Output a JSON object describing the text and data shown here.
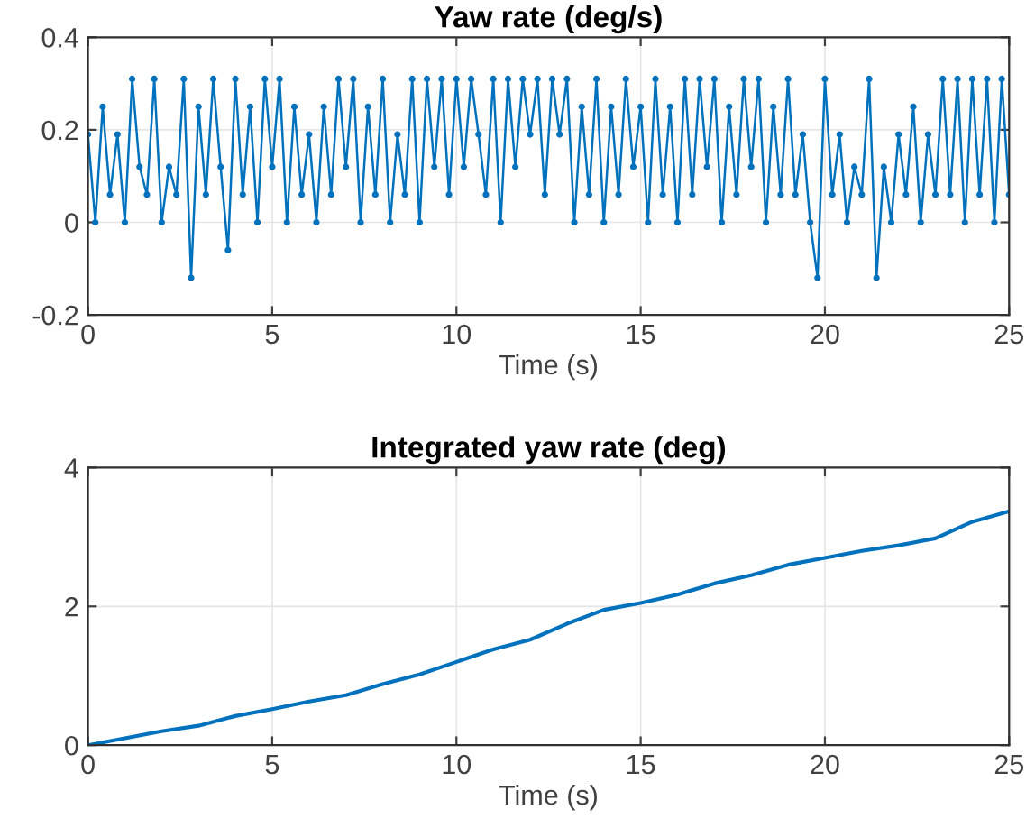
{
  "chart_data": [
    {
      "type": "line",
      "title": "Yaw rate (deg/s)",
      "xlabel": "Time (s)",
      "xlim": [
        0,
        25
      ],
      "xticks": [
        0,
        5,
        10,
        15,
        20,
        25
      ],
      "ylim": [
        -0.2,
        0.4
      ],
      "yticks": [
        -0.2,
        0,
        0.2,
        0.4
      ],
      "grid": true,
      "marker": "circle",
      "line_style": "solid",
      "series": [
        {
          "color": "#0072bd",
          "x": [
            0,
            0.2,
            0.4,
            0.6,
            0.8,
            1.0,
            1.2,
            1.4,
            1.6,
            1.8,
            2.0,
            2.2,
            2.4,
            2.6,
            2.8,
            3.0,
            3.2,
            3.4,
            3.6,
            3.8,
            4.0,
            4.2,
            4.4,
            4.6,
            4.8,
            5.0,
            5.2,
            5.4,
            5.6,
            5.8,
            6.0,
            6.2,
            6.4,
            6.6,
            6.8,
            7.0,
            7.2,
            7.4,
            7.6,
            7.8,
            8.0,
            8.2,
            8.4,
            8.6,
            8.8,
            9.0,
            9.2,
            9.4,
            9.6,
            9.8,
            10.0,
            10.2,
            10.4,
            10.6,
            10.8,
            11.0,
            11.2,
            11.4,
            11.6,
            11.8,
            12.0,
            12.2,
            12.4,
            12.6,
            12.8,
            13.0,
            13.2,
            13.4,
            13.6,
            13.8,
            14.0,
            14.2,
            14.4,
            14.6,
            14.8,
            15.0,
            15.2,
            15.4,
            15.6,
            15.8,
            16.0,
            16.2,
            16.4,
            16.6,
            16.8,
            17.0,
            17.2,
            17.4,
            17.6,
            17.8,
            18.0,
            18.2,
            18.4,
            18.6,
            18.8,
            19.0,
            19.2,
            19.4,
            19.6,
            19.8,
            20.0,
            20.2,
            20.4,
            20.6,
            20.8,
            21.0,
            21.2,
            21.4,
            21.6,
            21.8,
            22.0,
            22.2,
            22.4,
            22.6,
            22.8,
            23.0,
            23.2,
            23.4,
            23.6,
            23.8,
            24.0,
            24.2,
            24.4,
            24.6,
            24.8,
            25.0
          ],
          "values": [
            0.19,
            0,
            0.25,
            0.06,
            0.19,
            0,
            0.31,
            0.12,
            0.06,
            0.31,
            0,
            0.12,
            0.06,
            0.31,
            -0.12,
            0.25,
            0.06,
            0.31,
            0.12,
            -0.06,
            0.31,
            0.06,
            0.25,
            0,
            0.31,
            0.12,
            0.31,
            0,
            0.25,
            0.06,
            0.19,
            0,
            0.25,
            0.06,
            0.31,
            0.12,
            0.31,
            0,
            0.25,
            0.06,
            0.31,
            0,
            0.19,
            0.06,
            0.31,
            0,
            0.31,
            0.12,
            0.31,
            0.06,
            0.31,
            0.12,
            0.31,
            0.19,
            0.06,
            0.31,
            0,
            0.31,
            0.12,
            0.31,
            0.19,
            0.31,
            0.06,
            0.31,
            0.19,
            0.31,
            0,
            0.25,
            0.06,
            0.31,
            0,
            0.25,
            0.06,
            0.31,
            0.12,
            0.25,
            0,
            0.31,
            0.06,
            0.25,
            0,
            0.31,
            0.06,
            0.31,
            0.12,
            0.31,
            0,
            0.25,
            0.06,
            0.31,
            0.12,
            0.31,
            0,
            0.25,
            0.06,
            0.31,
            0.06,
            0.19,
            0,
            -0.12,
            0.31,
            0.06,
            0.19,
            0,
            0.12,
            0.06,
            0.31,
            -0.12,
            0.12,
            0,
            0.19,
            0.06,
            0.25,
            0,
            0.19,
            0.06,
            0.31,
            0.06,
            0.31,
            0,
            0.31,
            0.06,
            0.31,
            0,
            0.31,
            0.06
          ]
        }
      ]
    },
    {
      "type": "line",
      "title": "Integrated yaw rate (deg)",
      "xlabel": "Time (s)",
      "xlim": [
        0,
        25
      ],
      "xticks": [
        0,
        5,
        10,
        15,
        20,
        25
      ],
      "ylim": [
        0,
        4
      ],
      "yticks": [
        0,
        2,
        4
      ],
      "grid": true,
      "line_style": "solid",
      "series": [
        {
          "color": "#0072bd",
          "x": [
            0,
            1,
            2,
            3,
            4,
            5,
            6,
            7,
            8,
            9,
            10,
            11,
            12,
            13,
            14,
            15,
            16,
            17,
            18,
            19,
            20,
            21,
            22,
            23,
            24,
            25
          ],
          "values": [
            0,
            0.1,
            0.2,
            0.28,
            0.42,
            0.52,
            0.63,
            0.72,
            0.88,
            1.02,
            1.2,
            1.38,
            1.52,
            1.75,
            1.95,
            2.05,
            2.17,
            2.33,
            2.45,
            2.6,
            2.7,
            2.8,
            2.88,
            2.98,
            3.22,
            3.37
          ]
        }
      ]
    }
  ]
}
